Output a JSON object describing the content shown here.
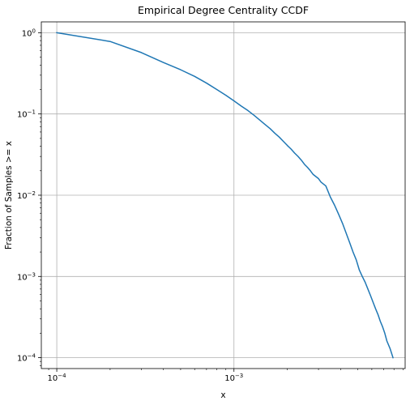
{
  "chart_data": {
    "type": "line",
    "title": "Empirical Degree Centrality CCDF",
    "xlabel": "x",
    "ylabel": "Fraction of Samples >= x",
    "xscale": "log",
    "yscale": "log",
    "xlim": [
      8.18e-05,
      0.00925
    ],
    "ylim": [
      7.35e-05,
      1.36
    ],
    "x_ticks": [
      {
        "value": 0.0001,
        "base": "10",
        "exp": "−4"
      },
      {
        "value": 0.001,
        "base": "10",
        "exp": "−3"
      }
    ],
    "y_ticks": [
      {
        "value": 1,
        "base": "10",
        "exp": "0"
      },
      {
        "value": 0.1,
        "base": "10",
        "exp": "−1"
      },
      {
        "value": 0.01,
        "base": "10",
        "exp": "−2"
      },
      {
        "value": 0.001,
        "base": "10",
        "exp": "−3"
      },
      {
        "value": 0.0001,
        "base": "10",
        "exp": "−4"
      }
    ],
    "grid": true,
    "line_color": "#1f77b4",
    "series": [
      {
        "x": [
          0.0001,
          0.0002,
          0.0003,
          0.0004,
          0.0005,
          0.0006,
          0.0007,
          0.0008,
          0.0009,
          0.001,
          0.0011,
          0.0012,
          0.0013,
          0.0014,
          0.0015,
          0.0016,
          0.0017,
          0.0018,
          0.0019,
          0.002,
          0.0021,
          0.0022,
          0.0023,
          0.0024,
          0.0025,
          0.0026,
          0.0027,
          0.0028,
          0.003,
          0.0031,
          0.0033,
          0.0035,
          0.0037,
          0.0039,
          0.0041,
          0.0043,
          0.0045,
          0.0047,
          0.0049,
          0.0051,
          0.0053,
          0.0055,
          0.0057,
          0.0059,
          0.0061,
          0.0063,
          0.0065,
          0.0067,
          0.0069,
          0.0071,
          0.0073,
          0.0076,
          0.0079
        ],
        "y": [
          1.0,
          0.78,
          0.57,
          0.43,
          0.35,
          0.29,
          0.24,
          0.2,
          0.17,
          0.145,
          0.125,
          0.11,
          0.096,
          0.084,
          0.074,
          0.066,
          0.058,
          0.052,
          0.046,
          0.041,
          0.037,
          0.033,
          0.03,
          0.027,
          0.024,
          0.022,
          0.02,
          0.018,
          0.016,
          0.0145,
          0.013,
          0.0095,
          0.0075,
          0.0058,
          0.0045,
          0.0034,
          0.0026,
          0.002,
          0.0016,
          0.0012,
          0.001,
          0.00085,
          0.0007,
          0.00058,
          0.00048,
          0.0004,
          0.00034,
          0.00028,
          0.00024,
          0.0002,
          0.00016,
          0.00013,
          0.0001
        ]
      }
    ]
  }
}
